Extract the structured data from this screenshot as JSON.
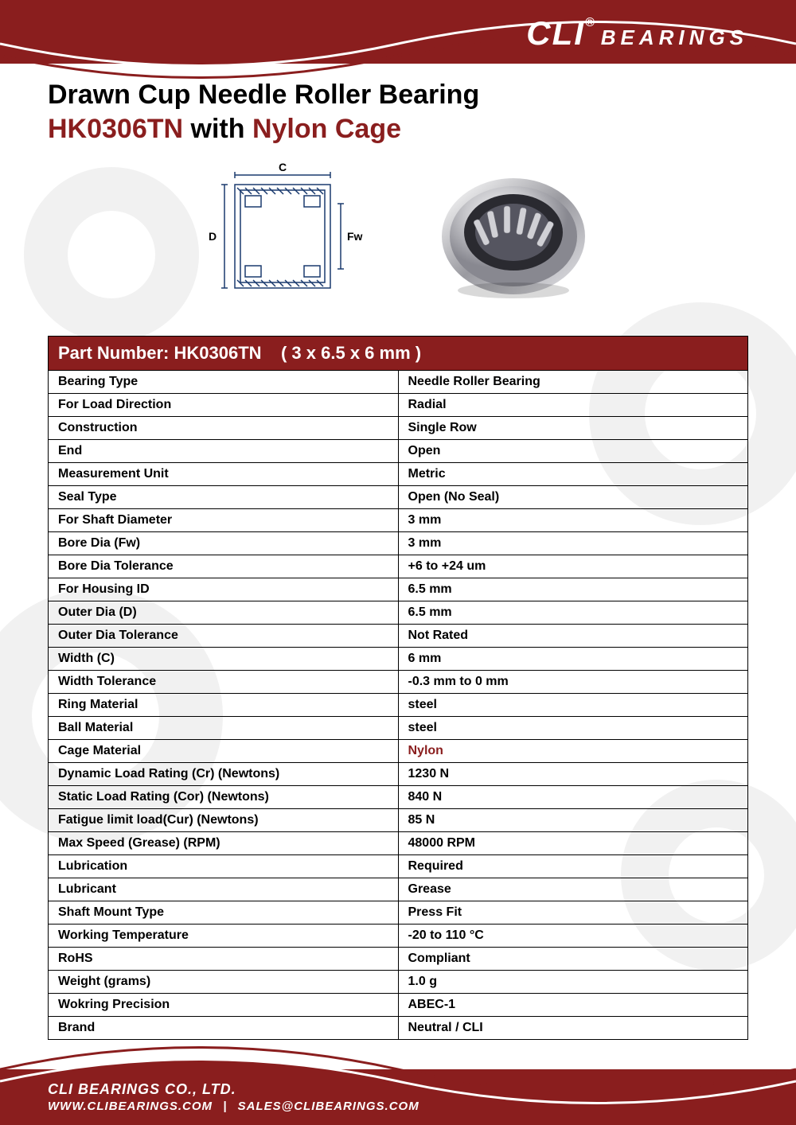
{
  "brand": {
    "logo_main": "CLI",
    "logo_reg": "®",
    "logo_sub": "BEARINGS",
    "color_primary": "#8a1e1e",
    "color_white": "#ffffff"
  },
  "title": {
    "line1": "Drawn Cup Needle Roller Bearing",
    "part": "HK0306TN",
    "with": "with",
    "cage": "Nylon Cage"
  },
  "diagram": {
    "label_C": "C",
    "label_D": "D",
    "label_Fw": "Fw"
  },
  "table": {
    "header_prefix": "Part Number:",
    "header_part": "HK0306TN",
    "header_dims": "( 3 x 6.5 x 6 mm )",
    "rows": [
      {
        "label": "Bearing Type",
        "value": "Needle Roller Bearing"
      },
      {
        "label": "For Load Direction",
        "value": "Radial"
      },
      {
        "label": "Construction",
        "value": "Single Row"
      },
      {
        "label": "End",
        "value": "Open"
      },
      {
        "label": "Measurement Unit",
        "value": "Metric"
      },
      {
        "label": "Seal Type",
        "value": "Open (No Seal)"
      },
      {
        "label": "For Shaft Diameter",
        "value": "3 mm"
      },
      {
        "label": "Bore Dia (Fw)",
        "value": "3 mm"
      },
      {
        "label": "Bore Dia Tolerance",
        "value": "+6 to +24 um"
      },
      {
        "label": "For Housing ID",
        "value": "6.5 mm"
      },
      {
        "label": "Outer Dia (D)",
        "value": "6.5 mm"
      },
      {
        "label": "Outer Dia Tolerance",
        "value": "Not Rated"
      },
      {
        "label": "Width (C)",
        "value": "6 mm"
      },
      {
        "label": "Width Tolerance",
        "value": "-0.3 mm to 0 mm"
      },
      {
        "label": "Ring Material",
        "value": "steel"
      },
      {
        "label": "Ball Material",
        "value": "steel"
      },
      {
        "label": "Cage Material",
        "value": "Nylon",
        "highlight": true
      },
      {
        "label": "Dynamic Load Rating (Cr) (Newtons)",
        "value": "1230 N"
      },
      {
        "label": "Static Load Rating (Cor) (Newtons)",
        "value": "840 N"
      },
      {
        "label": "Fatigue limit load(Cur) (Newtons)",
        "value": "85 N"
      },
      {
        "label": "Max Speed (Grease) (RPM)",
        "value": "48000 RPM"
      },
      {
        "label": "Lubrication",
        "value": "Required"
      },
      {
        "label": "Lubricant",
        "value": "Grease"
      },
      {
        "label": "Shaft Mount Type",
        "value": "Press Fit"
      },
      {
        "label": "Working Temperature",
        "value": "-20 to 110 °C"
      },
      {
        "label": "RoHS",
        "value": "Compliant"
      },
      {
        "label": "Weight (grams)",
        "value": "1.0 g"
      },
      {
        "label": "Wokring Precision",
        "value": "ABEC-1"
      },
      {
        "label": "Brand",
        "value": "Neutral / CLI"
      }
    ]
  },
  "footer": {
    "company": "CLI BEARINGS CO., LTD.",
    "website": "WWW.CLIBEARINGS.COM",
    "separator": "|",
    "email": "SALES@CLIBEARINGS.COM"
  }
}
